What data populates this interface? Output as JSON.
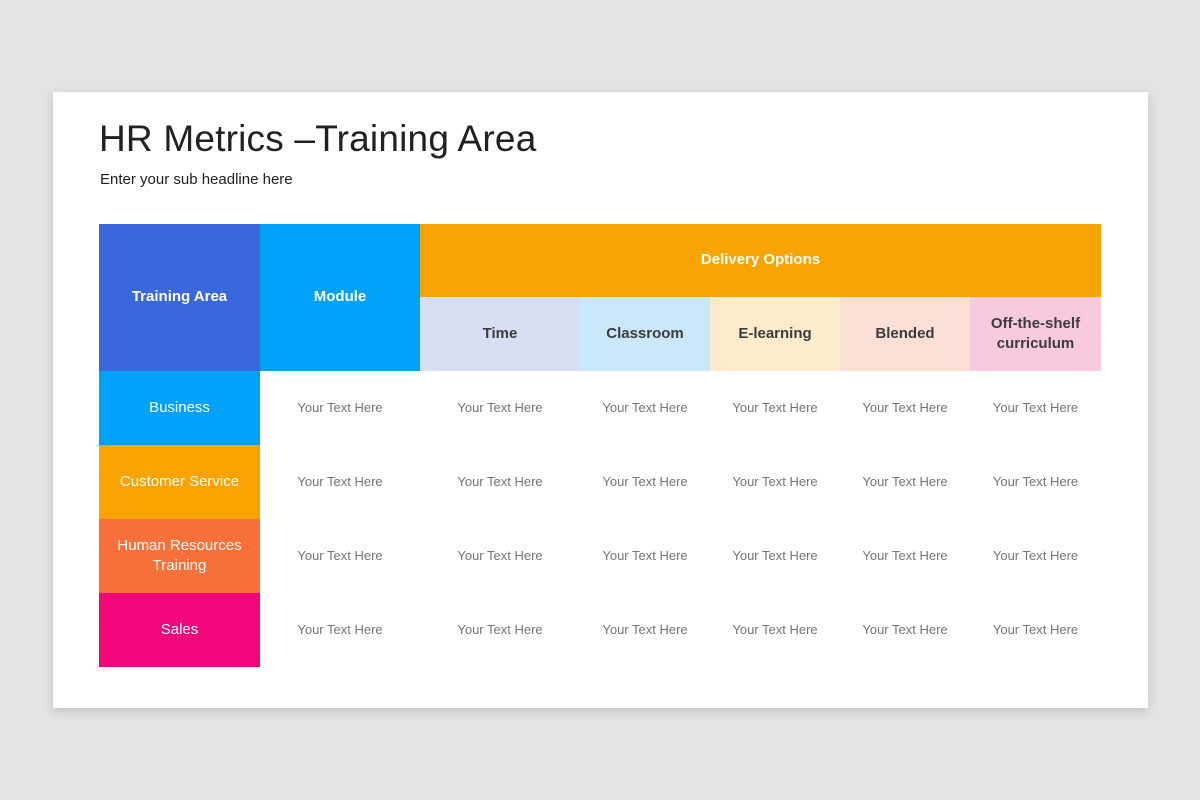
{
  "page_background": "#e4e4e6",
  "slide": {
    "title": "HR Metrics –Training Area",
    "subtitle": "Enter your sub headline here"
  },
  "table": {
    "corner_headers": [
      {
        "label": "Training Area",
        "bg": "#3a67db",
        "fg": "#ffffff"
      },
      {
        "label": "Module",
        "bg": "#00a2f8",
        "fg": "#ffffff"
      }
    ],
    "group_header": {
      "label": "Delivery Options",
      "bg": "#f7a301",
      "fg": "#ffffff"
    },
    "sub_headers": [
      {
        "label": "Time",
        "bg": "#d8dff5"
      },
      {
        "label": "Classroom",
        "bg": "#c9e8fa"
      },
      {
        "label": "E-learning",
        "bg": "#fdebcd"
      },
      {
        "label": "Blended",
        "bg": "#fce0d6"
      },
      {
        "label": "Off-the-shelf curriculum",
        "bg": "#f8c9df"
      }
    ],
    "rows": [
      {
        "label": "Business",
        "bg": "#00a2f8",
        "cells": [
          "Your Text Here",
          "Your Text Here",
          "Your Text Here",
          "Your Text Here",
          "Your Text Here",
          "Your Text Here"
        ]
      },
      {
        "label": "Customer Service",
        "bg": "#f9a301",
        "cells": [
          "Your Text Here",
          "Your Text Here",
          "Your Text Here",
          "Your Text Here",
          "Your Text Here",
          "Your Text Here"
        ]
      },
      {
        "label": "Human Resources Training",
        "bg": "#f9713a",
        "cells": [
          "Your Text Here",
          "Your Text Here",
          "Your Text Here",
          "Your Text Here",
          "Your Text Here",
          "Your Text Here"
        ]
      },
      {
        "label": "Sales",
        "bg": "#f2077b",
        "cells": [
          "Your Text Here",
          "Your Text Here",
          "Your Text Here",
          "Your Text Here",
          "Your Text Here",
          "Your Text Here"
        ]
      }
    ]
  }
}
